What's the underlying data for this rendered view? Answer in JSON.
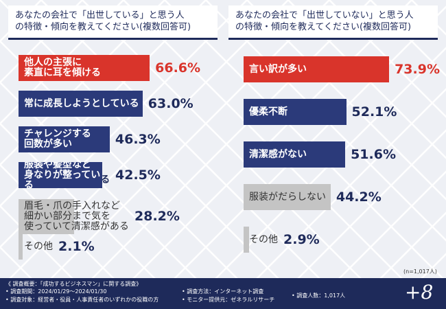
{
  "charts": [
    {
      "type": "bar",
      "title": "あなたの会社で「出世している」と思う人\nの特徴・傾向を教えてください(複数回答可)",
      "categories": [
        "他人の主張に\n素直に耳を傾ける",
        "常に成長しようとしている",
        "チャレンジする\n回数が多い",
        "服装や髪型など\n身なりが整っている",
        "眉毛・爪の手入れなど\n細かい部分まで気を\n使っていて清潔感がある",
        "その他"
      ],
      "values": [
        66.6,
        63.0,
        46.3,
        42.5,
        28.2,
        2.1
      ],
      "value_labels": [
        "66.6%",
        "63.0%",
        "46.3%",
        "42.5%",
        "28.2%",
        "2.1%"
      ],
      "colors": [
        "#d9342b",
        "#2b3a7a",
        "#2b3a7a",
        "#2b3a7a",
        "#c4c4c4",
        "#c4c4c4"
      ]
    },
    {
      "type": "bar",
      "title": "あなたの会社で「出世していない」と思う人\nの特徴・傾向を教えてください(複数回答可)",
      "categories": [
        "言い訳が多い",
        "優柔不断",
        "清潔感がない",
        "服装がだらしない",
        "その他"
      ],
      "values": [
        73.9,
        52.1,
        51.6,
        44.2,
        2.9
      ],
      "value_labels": [
        "73.9%",
        "52.1%",
        "51.6%",
        "44.2%",
        "2.9%"
      ],
      "colors": [
        "#d9342b",
        "#2b3a7a",
        "#2b3a7a",
        "#c4c4c4",
        "#c4c4c4"
      ]
    }
  ],
  "note": "(n=1,017人)",
  "footer": {
    "heading": "《 調査概要：「成功するビジネスマン」に関する調査》",
    "items": [
      "• 調査期間：2024/01/29～2024/01/30",
      "• 調査対象：経営者・役員・人事責任者のいずれかの役職の方",
      "• 調査方法：インターネット調査",
      "• モニター提供元：ゼネラルリサーチ",
      "• 調査人数：1,017人"
    ],
    "logo": "+8"
  }
}
